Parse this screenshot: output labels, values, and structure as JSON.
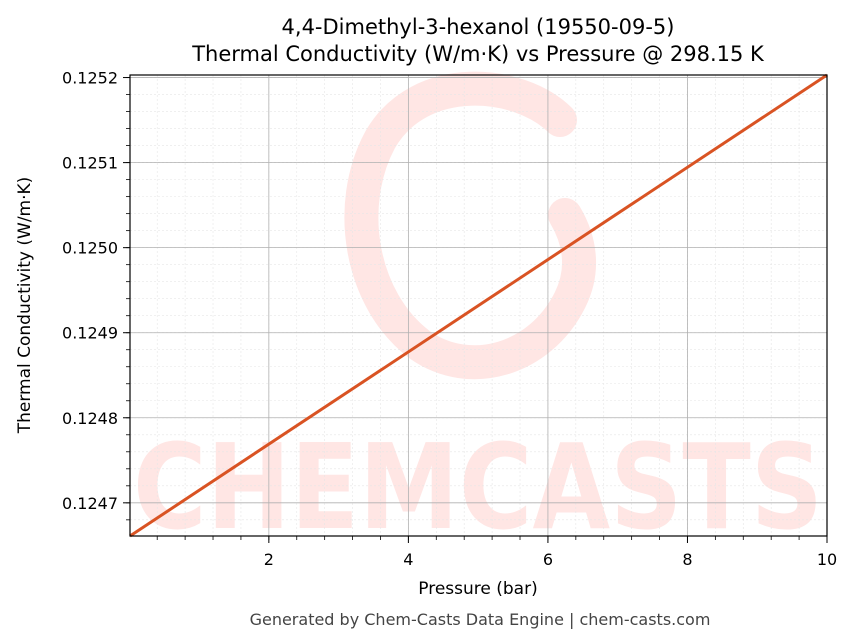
{
  "chart_data": {
    "type": "line",
    "title": "4,4-Dimethyl-3-hexanol (19550-09-5)",
    "subtitle": "Thermal Conductivity (W/m·K) vs Pressure @ 298.15 K",
    "xlabel": "Pressure (bar)",
    "ylabel": "Thermal Conductivity (W/m·K)",
    "xlim": [
      0.01,
      10
    ],
    "ylim": [
      0.124661,
      0.125203
    ],
    "x_ticks": [
      2,
      4,
      6,
      8,
      10
    ],
    "x_tick_labels": [
      "2",
      "4",
      "6",
      "8",
      "10"
    ],
    "y_ticks": [
      0.1247,
      0.1248,
      0.1249,
      0.125,
      0.1251,
      0.1252
    ],
    "y_tick_labels": [
      "0.1247",
      "0.1248",
      "0.1249",
      "0.1250",
      "0.1251",
      "0.1252"
    ],
    "grid": true,
    "minor_grid": true,
    "series": [
      {
        "color": "#d95323",
        "x": [
          0.01,
          10
        ],
        "y": [
          0.124661,
          0.125203
        ]
      }
    ]
  },
  "watermark": {
    "text": "CHEMCASTS",
    "color": "#ffe6e4"
  },
  "footer": "Generated by Chem-Casts Data Engine | chem-casts.com"
}
